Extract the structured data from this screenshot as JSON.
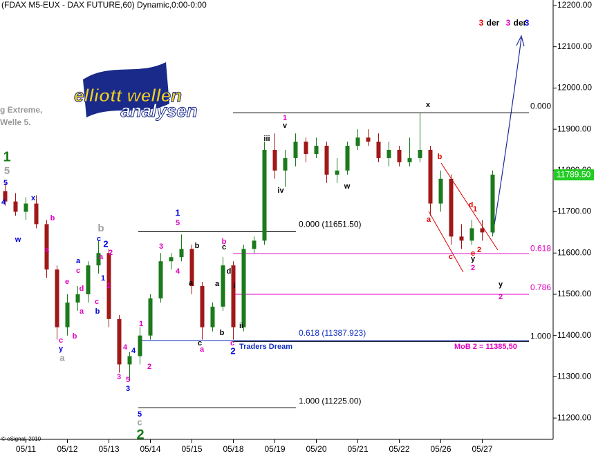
{
  "chart_data": {
    "type": "candlestick",
    "title": "(FDAX M5-EUX - DAX FUTURE,60) Dynamic,0:00-0:00",
    "side_notes": [
      "g Extreme,",
      "Welle 5."
    ],
    "copyright": "© eSignal, 2010",
    "logo": [
      "elliott wellen",
      "analysen"
    ],
    "headline": [
      {
        "text": "3",
        "color": "#e00000"
      },
      {
        "text": "der",
        "color": "#000000"
      },
      {
        "text": "3",
        "color": "#e000c0"
      },
      {
        "text": "der",
        "color": "#000000"
      },
      {
        "text": "3",
        "color": "#0000dd"
      }
    ],
    "categories": [
      null,
      null,
      "05/11",
      null,
      null,
      null,
      "05/12",
      null,
      null,
      null,
      "05/13",
      null,
      null,
      null,
      "05/14",
      null,
      null,
      null,
      "05/15",
      null,
      null,
      null,
      "05/18",
      null,
      null,
      null,
      "05/19",
      null,
      null,
      null,
      "05/20",
      null,
      null,
      null,
      "05/21",
      null,
      null,
      null,
      "05/22",
      null,
      null,
      null,
      "05/26",
      null,
      null,
      null,
      "05/27",
      null
    ],
    "open": [
      11750,
      11725,
      11700,
      11720,
      11670,
      11560,
      11420,
      11480,
      11500,
      11570,
      11600,
      11440,
      11330,
      11350,
      11400,
      11490,
      11580,
      11590,
      11610,
      11520,
      11420,
      11470,
      11570,
      11420,
      11610,
      11630,
      11850,
      11800,
      11830,
      11870,
      11840,
      11860,
      11790,
      11800,
      11860,
      11880,
      11870,
      11830,
      11850,
      11820,
      11830,
      11850,
      11720,
      11780,
      11640,
      11630,
      11660,
      11650
    ],
    "high": [
      11770,
      11745,
      11735,
      11740,
      11680,
      11570,
      11500,
      11520,
      11580,
      11630,
      11610,
      11450,
      11360,
      11420,
      11500,
      11600,
      11600,
      11645,
      11620,
      11530,
      11480,
      11590,
      11580,
      11620,
      11640,
      11870,
      11890,
      11850,
      11890,
      11880,
      11880,
      11870,
      11830,
      11870,
      11900,
      11900,
      11890,
      11870,
      11860,
      11880,
      11940,
      11860,
      11800,
      11790,
      11670,
      11680,
      11680,
      11800
    ],
    "low": [
      11715,
      11690,
      11680,
      11660,
      11540,
      11390,
      11400,
      11460,
      11480,
      11550,
      11420,
      11310,
      11290,
      11330,
      11390,
      11480,
      11560,
      11580,
      11500,
      11390,
      11410,
      11460,
      11390,
      11410,
      11600,
      11620,
      11780,
      11760,
      11810,
      11820,
      11830,
      11770,
      11770,
      11790,
      11850,
      11860,
      11820,
      11810,
      11810,
      11810,
      11820,
      11690,
      11700,
      11620,
      11610,
      11620,
      11630,
      11640
    ],
    "close": [
      11725,
      11700,
      11720,
      11670,
      11560,
      11420,
      11480,
      11500,
      11570,
      11600,
      11440,
      11330,
      11350,
      11400,
      11490,
      11580,
      11590,
      11610,
      11520,
      11420,
      11470,
      11570,
      11420,
      11610,
      11630,
      11850,
      11800,
      11830,
      11870,
      11840,
      11860,
      11790,
      11800,
      11860,
      11880,
      11870,
      11830,
      11850,
      11820,
      11830,
      11850,
      11720,
      11780,
      11640,
      11630,
      11660,
      11650,
      11790
    ],
    "up_color": "#1b7a1b",
    "down_color": "#a01818",
    "last_price": {
      "value": 11789.5,
      "label": "11789.50"
    },
    "ylim": [
      11150,
      12210
    ],
    "yticks": [
      {
        "value": 11200,
        "label": "11200.00"
      },
      {
        "value": 11300,
        "label": "11300.00"
      },
      {
        "value": 11400,
        "label": "11400.00"
      },
      {
        "value": 11500,
        "label": "11500.00"
      },
      {
        "value": 11600,
        "label": "11600.00"
      },
      {
        "value": 11700,
        "label": "11700.00"
      },
      {
        "value": 11800,
        "label": "11800.00"
      },
      {
        "value": 11900,
        "label": "11900.00"
      },
      {
        "value": 12000,
        "label": "12000.00"
      },
      {
        "value": 12100,
        "label": "12100.00"
      },
      {
        "value": 12200,
        "label": "12200.00"
      }
    ],
    "levels": [
      {
        "value": 11651.5,
        "label": "0.000 (11651.50)",
        "color": "#000000"
      },
      {
        "value": 11387.923,
        "label": "0.618 (11387.923)",
        "color": "#1030c0"
      },
      {
        "value": 11225,
        "label": "1.000 (11225.00)",
        "color": "#000000"
      },
      {
        "value": 11940,
        "label": "0.000",
        "color": "#000000"
      },
      {
        "value": 11598,
        "label": "0.618",
        "color": "#e000c0"
      },
      {
        "value": 11500,
        "label": "0.786",
        "color": "#e000c0"
      },
      {
        "value": 11385.5,
        "label": "1.000",
        "color": "#000000"
      }
    ],
    "notes": [
      {
        "text": "Traders Dream",
        "color": "#1030c0"
      },
      {
        "text": "MoB 2 = 11385,50",
        "color": "#e000c0"
      }
    ],
    "annotations": [
      {
        "text": "1",
        "color": "#1a7a1a"
      },
      {
        "text": "5",
        "color": "#a0a0a0"
      },
      {
        "text": "5",
        "color": "#0000dd"
      },
      {
        "text": "4",
        "color": "#0000dd"
      },
      {
        "text": "w",
        "color": "#0000dd"
      },
      {
        "text": "x",
        "color": "#0000dd"
      },
      {
        "text": "b",
        "color": "#e000c0"
      },
      {
        "text": "a",
        "color": "#e000c0"
      },
      {
        "text": "c",
        "color": "#e000c0"
      },
      {
        "text": "y",
        "color": "#0000dd"
      },
      {
        "text": "a",
        "color": "#a0a0a0"
      },
      {
        "text": "e",
        "color": "#e000c0"
      },
      {
        "text": "b",
        "color": "#e000c0"
      },
      {
        "text": "a",
        "color": "#0000dd"
      },
      {
        "text": "c",
        "color": "#e000c0"
      },
      {
        "text": "d",
        "color": "#e000c0"
      },
      {
        "text": "a",
        "color": "#e000c0"
      },
      {
        "text": "c",
        "color": "#e000c0"
      },
      {
        "text": "b",
        "color": "#0000dd"
      },
      {
        "text": "b",
        "color": "#a0a0a0"
      },
      {
        "text": "c",
        "color": "#0000dd"
      },
      {
        "text": "2",
        "color": "#0000dd"
      },
      {
        "text": "2",
        "color": "#e000c0"
      },
      {
        "text": "a",
        "color": "#e000c0"
      },
      {
        "text": "1",
        "color": "#e000c0"
      },
      {
        "text": "1",
        "color": "#0000dd"
      },
      {
        "text": "4",
        "color": "#e000c0"
      },
      {
        "text": "3",
        "color": "#e000c0"
      },
      {
        "text": "5",
        "color": "#e000c0"
      },
      {
        "text": "3",
        "color": "#0000dd"
      },
      {
        "text": "4",
        "color": "#0000dd"
      },
      {
        "text": "2",
        "color": "#e000c0"
      },
      {
        "text": "1",
        "color": "#e000c0"
      },
      {
        "text": "5",
        "color": "#0000dd"
      },
      {
        "text": "c",
        "color": "#a0a0a0"
      },
      {
        "text": "2",
        "color": "#1a7a1a"
      },
      {
        "text": "1",
        "color": "#0000dd"
      },
      {
        "text": "5",
        "color": "#e000c0"
      },
      {
        "text": "3",
        "color": "#e000c0"
      },
      {
        "text": "4",
        "color": "#e000c0"
      },
      {
        "text": "b",
        "color": "#000000"
      },
      {
        "text": "a",
        "color": "#000000"
      },
      {
        "text": "c",
        "color": "#000000"
      },
      {
        "text": "a",
        "color": "#e000c0"
      },
      {
        "text": "a",
        "color": "#000000"
      },
      {
        "text": "b",
        "color": "#000000"
      },
      {
        "text": "c",
        "color": "#e000c0"
      },
      {
        "text": "2",
        "color": "#0000dd"
      },
      {
        "text": "b",
        "color": "#e000c0"
      },
      {
        "text": "c",
        "color": "#000000"
      },
      {
        "text": "d",
        "color": "#000000"
      },
      {
        "text": "i",
        "color": "#000000"
      },
      {
        "text": "ii",
        "color": "#000000"
      },
      {
        "text": "1",
        "color": "#e000c0"
      },
      {
        "text": "v",
        "color": "#000000"
      },
      {
        "text": "iii",
        "color": "#000000"
      },
      {
        "text": "iv",
        "color": "#000000"
      },
      {
        "text": "w",
        "color": "#000000"
      },
      {
        "text": "x",
        "color": "#000000"
      },
      {
        "text": "b",
        "color": "#e00000"
      },
      {
        "text": "a",
        "color": "#e00000"
      },
      {
        "text": "c",
        "color": "#e00000"
      },
      {
        "text": "d",
        "color": "#e00000"
      },
      {
        "text": "1",
        "color": "#e00000"
      },
      {
        "text": "e",
        "color": "#e00000"
      },
      {
        "text": "2",
        "color": "#e00000"
      },
      {
        "text": "y",
        "color": "#000000"
      },
      {
        "text": "2",
        "color": "#e000c0"
      },
      {
        "text": "y",
        "color": "#000000"
      },
      {
        "text": "2",
        "color": "#e000c0"
      }
    ]
  }
}
